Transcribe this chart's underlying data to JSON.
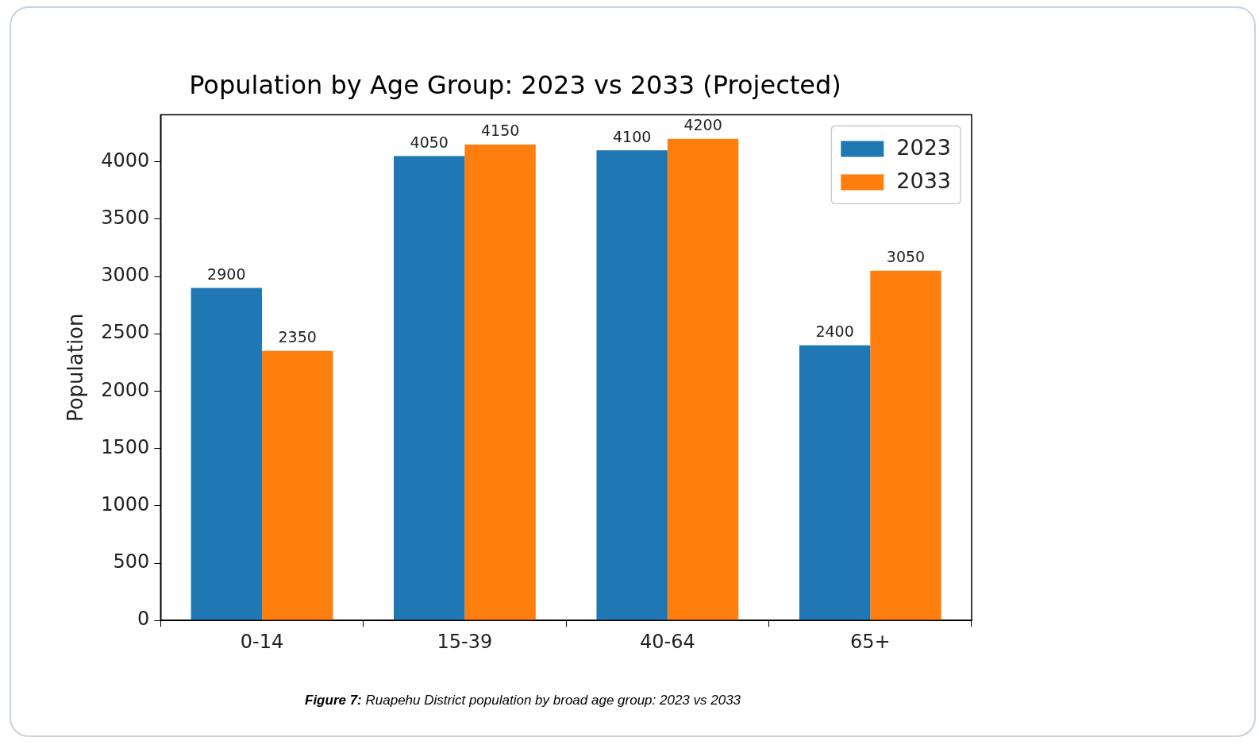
{
  "chart_data": {
    "type": "bar",
    "title": "Population by Age Group: 2023 vs 2033 (Projected)",
    "ylabel": "Population",
    "categories": [
      "0-14",
      "15-39",
      "40-64",
      "65+"
    ],
    "series": [
      {
        "name": "2023",
        "color": "#1f77b4",
        "values": [
          2900,
          4050,
          4100,
          2400
        ]
      },
      {
        "name": "2033",
        "color": "#ff7f0e",
        "values": [
          2350,
          4150,
          4200,
          3050
        ]
      }
    ],
    "ylim": [
      0,
      4410
    ],
    "yticks": [
      0,
      500,
      1000,
      1500,
      2000,
      2500,
      3000,
      3500,
      4000
    ],
    "data_labels": true,
    "legend": "top right",
    "grid": false,
    "annotations": [
      "Figure 7: Ruapehu District population by broad age group: 2023 vs 2033"
    ]
  }
}
